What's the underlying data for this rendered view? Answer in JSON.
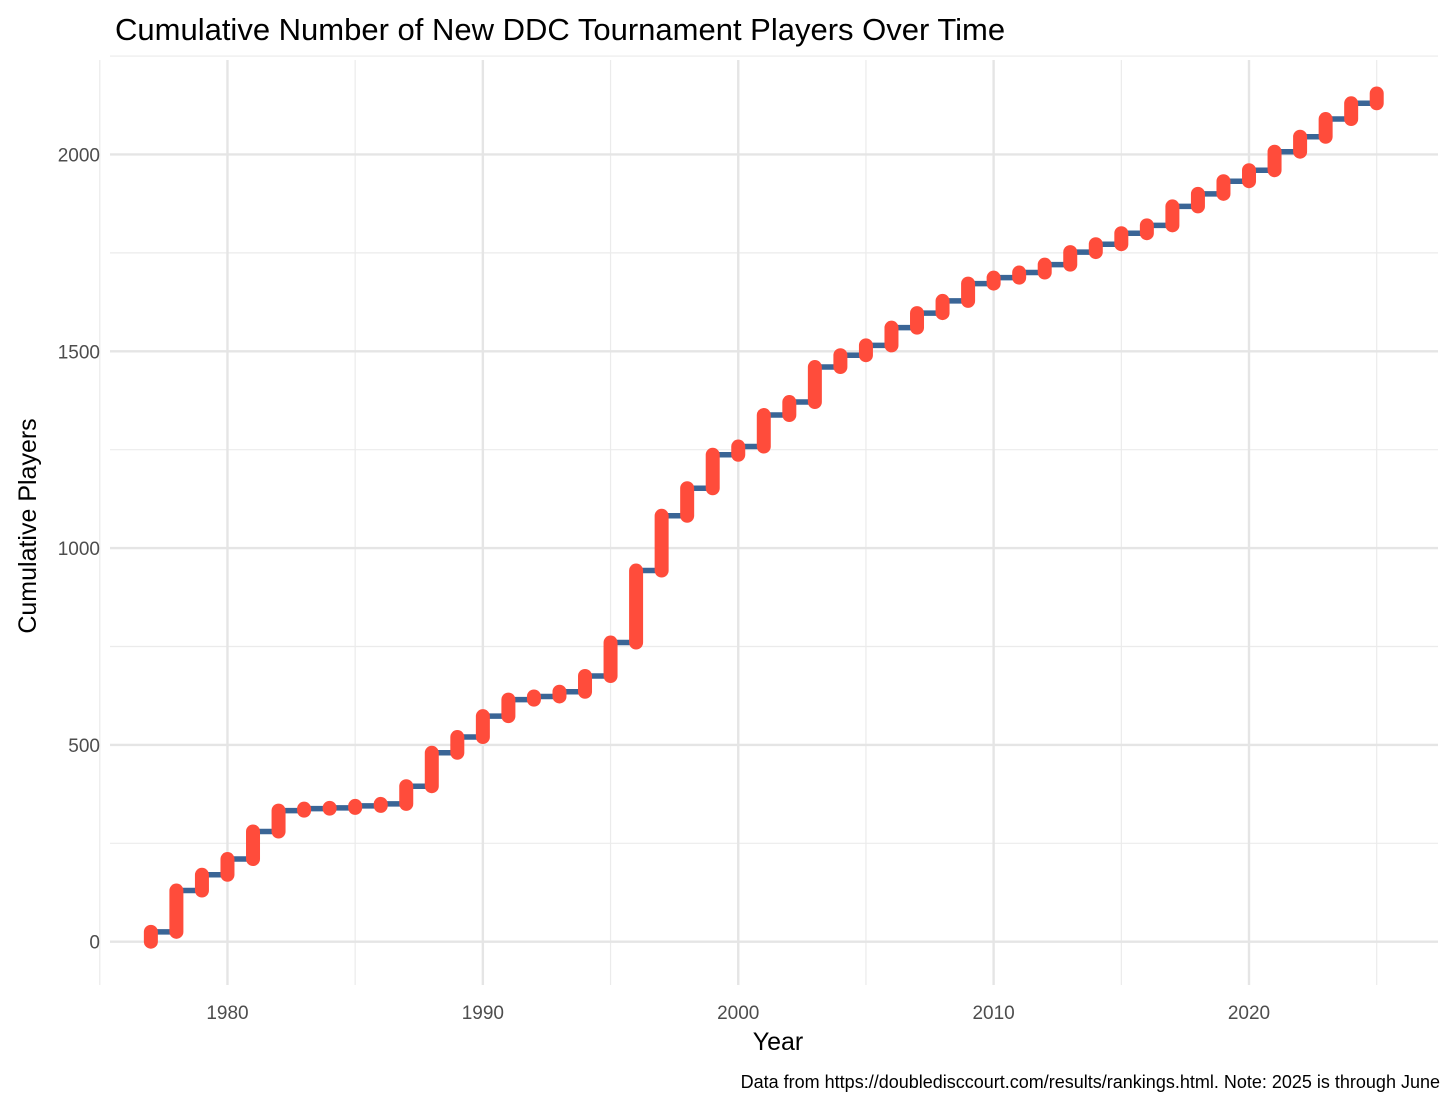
{
  "chart_data": {
    "type": "line",
    "title": "Cumulative Number of New DDC Tournament Players Over Time",
    "xlabel": "Year",
    "ylabel": "Cumulative Players",
    "caption": "Data from https://doubledisccourt.com/results/rankings.html. Note: 2025 is through June",
    "xlim": [
      1975.4,
      1977.0,
      2026.0
    ],
    "x_range": [
      1975.4,
      2027.4
    ],
    "ylim": [
      -110,
      2240
    ],
    "x_ticks": [
      1980,
      1990,
      2000,
      2010,
      2020
    ],
    "x_tick_labels": [
      "1980",
      "1990",
      "2000",
      "2010",
      "2020"
    ],
    "y_ticks": [
      0,
      500,
      1000,
      1500,
      2000
    ],
    "y_tick_labels": [
      "0",
      "500",
      "1000",
      "1500",
      "2000"
    ],
    "grid": true,
    "line_color": "#3a6596",
    "segment_color": "#ff4c3b",
    "series": [
      {
        "x": [
          1977,
          1978,
          1979,
          1980,
          1981,
          1982,
          1983,
          1984,
          1985,
          1986,
          1987,
          1988,
          1989,
          1990,
          1991,
          1992,
          1993,
          1994,
          1995,
          1996,
          1997,
          1998,
          1999,
          2000,
          2001,
          2002,
          2003,
          2004,
          2005,
          2006,
          2007,
          2008,
          2009,
          2010,
          2011,
          2012,
          2013,
          2014,
          2015,
          2016,
          2017,
          2018,
          2019,
          2020,
          2021,
          2022,
          2023,
          2024,
          2025
        ],
        "start": [
          0,
          25,
          130,
          170,
          210,
          280,
          333,
          338,
          340,
          345,
          350,
          395,
          480,
          520,
          573,
          615,
          623,
          635,
          675,
          760,
          943,
          1082,
          1152,
          1237,
          1258,
          1338,
          1371,
          1460,
          1490,
          1515,
          1560,
          1597,
          1628,
          1672,
          1687,
          1700,
          1720,
          1752,
          1772,
          1800,
          1820,
          1868,
          1900,
          1932,
          1960,
          2007,
          2045,
          2090,
          2130
        ],
        "end": [
          25,
          130,
          170,
          210,
          280,
          333,
          338,
          340,
          345,
          350,
          395,
          480,
          520,
          573,
          615,
          623,
          635,
          675,
          760,
          943,
          1082,
          1152,
          1237,
          1258,
          1338,
          1371,
          1460,
          1490,
          1515,
          1560,
          1597,
          1628,
          1672,
          1687,
          1700,
          1720,
          1752,
          1772,
          1800,
          1820,
          1868,
          1900,
          1932,
          1960,
          2007,
          2045,
          2090,
          2130,
          2155
        ]
      }
    ]
  }
}
